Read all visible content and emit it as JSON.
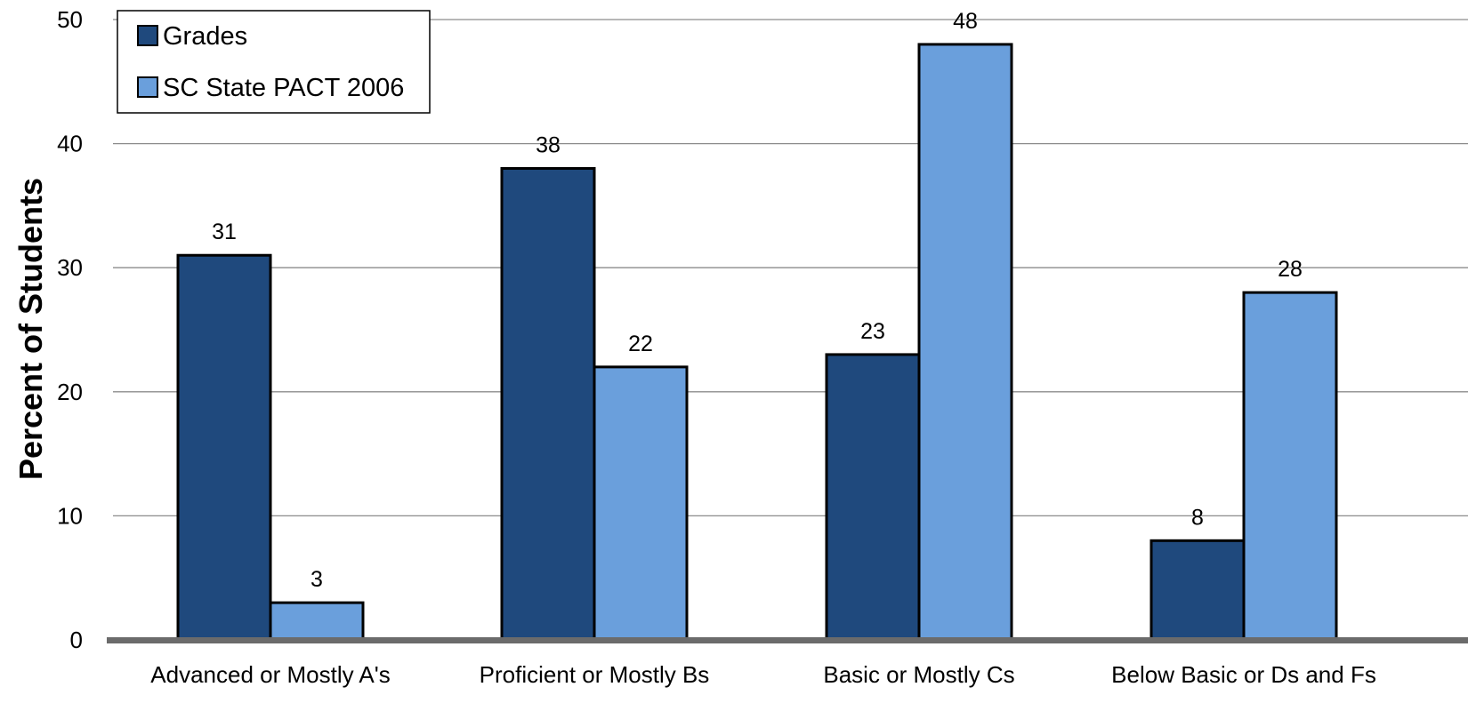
{
  "chart_data": {
    "type": "bar",
    "title": "",
    "xlabel": "",
    "ylabel": "Percent of Students",
    "ylim": [
      0,
      50
    ],
    "yticks": [
      0,
      10,
      20,
      30,
      40,
      50
    ],
    "grid": true,
    "legend_position": "top-left",
    "categories": [
      "Advanced or Mostly A's",
      "Proficient or Mostly Bs",
      "Basic or Mostly Cs",
      "Below Basic or Ds and Fs"
    ],
    "series": [
      {
        "name": "Grades",
        "values": [
          31,
          38,
          23,
          8
        ],
        "color": "#1F497D"
      },
      {
        "name": "SC State PACT 2006",
        "values": [
          3,
          22,
          48,
          28
        ],
        "color": "#6A9FDC"
      }
    ]
  }
}
